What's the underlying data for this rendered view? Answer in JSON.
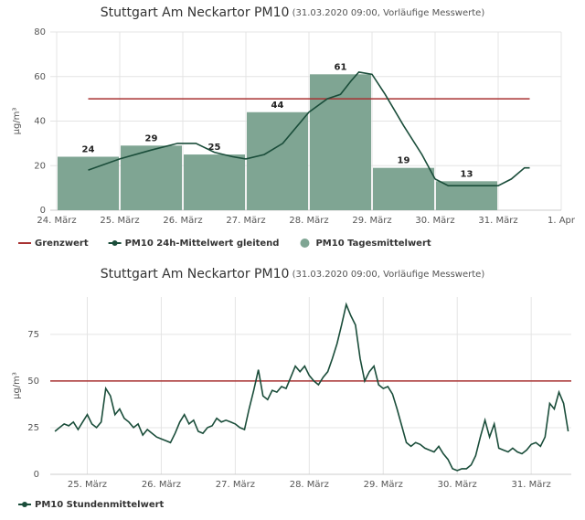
{
  "chart_data": [
    {
      "type": "bar",
      "title": "Stuttgart Am Neckartor PM10",
      "subtitle": "(31.03.2020 09:00, Vorläufige Messwerte)",
      "y_label": "µg/m³",
      "xlim": [
        0,
        192
      ],
      "xticks": [
        {
          "value": 0,
          "label": "24. März"
        },
        {
          "value": 24,
          "label": "25. März"
        },
        {
          "value": 48,
          "label": "26. März"
        },
        {
          "value": 72,
          "label": "27. März"
        },
        {
          "value": 96,
          "label": "28. März"
        },
        {
          "value": 120,
          "label": "29. März"
        },
        {
          "value": 144,
          "label": "30. März"
        },
        {
          "value": 168,
          "label": "31. März"
        },
        {
          "value": 192,
          "label": "1. Apr"
        }
      ],
      "ylim": [
        0,
        80
      ],
      "yticks": [
        0,
        20,
        40,
        60,
        80
      ],
      "grid": true,
      "series": [
        {
          "name": "Grenzwert",
          "type": "line",
          "color": "#a83232",
          "x": [
            12,
            180
          ],
          "values": [
            50,
            50
          ]
        },
        {
          "name": "PM10 24h-Mittelwert gleitend",
          "type": "line",
          "marker": true,
          "color": "#1a4d3a",
          "x": [
            12,
            24,
            36,
            46,
            53,
            60,
            67,
            72,
            79,
            86,
            96,
            103,
            108,
            112,
            115,
            120,
            125,
            132,
            139,
            144,
            149,
            156,
            163,
            168,
            173,
            178,
            180
          ],
          "values": [
            18,
            23,
            27,
            30,
            30,
            26,
            24,
            23,
            25,
            30,
            44,
            50,
            52,
            58,
            62,
            61,
            52,
            38,
            25,
            14,
            11,
            11,
            11,
            11,
            14,
            19,
            19
          ]
        },
        {
          "name": "PM10 Tagesmittelwert",
          "type": "bar",
          "color": "#7fa593",
          "bins": [
            0,
            24,
            48,
            72,
            96,
            120,
            144,
            168
          ],
          "values": [
            24,
            29,
            25,
            44,
            61,
            19,
            13
          ]
        }
      ]
    },
    {
      "type": "line",
      "title": "Stuttgart Am Neckartor PM10",
      "subtitle": "(31.03.2020 09:00, Vorläufige Messwerte)",
      "y_label": "µg/m³",
      "xlim": [
        12,
        181
      ],
      "xticks": [
        {
          "value": 24,
          "label": "25. März"
        },
        {
          "value": 48,
          "label": "26. März"
        },
        {
          "value": 72,
          "label": "27. März"
        },
        {
          "value": 96,
          "label": "28. März"
        },
        {
          "value": 120,
          "label": "29. März"
        },
        {
          "value": 144,
          "label": "30. März"
        },
        {
          "value": 168,
          "label": "31. März"
        }
      ],
      "ylim": [
        0,
        95
      ],
      "yticks": [
        0,
        25,
        50,
        75
      ],
      "grid": true,
      "hline": 50,
      "hline_color": "#a83232",
      "series": [
        {
          "name": "PM10 Stundenmittelwert",
          "type": "line",
          "marker": true,
          "color": "#1a4d3a",
          "x": [
            13.5,
            15,
            16.5,
            18,
            19.5,
            21,
            22.5,
            24,
            25.5,
            27,
            28.5,
            30,
            31.5,
            33,
            34.5,
            36,
            37.5,
            39,
            40.5,
            42,
            43.5,
            45,
            46.5,
            48,
            49.5,
            51,
            52.5,
            54,
            55.5,
            57,
            58.5,
            60,
            61.5,
            63,
            64.5,
            66,
            67.5,
            69,
            70.5,
            72,
            73.5,
            75,
            76.5,
            78,
            79.5,
            81,
            82.5,
            84,
            85.5,
            87,
            88.5,
            90,
            91.5,
            93,
            94.5,
            96,
            97.5,
            99,
            100.5,
            102,
            103.5,
            105,
            106.5,
            108,
            109.5,
            111,
            112.5,
            114,
            115.5,
            117,
            118.5,
            120,
            121.5,
            123,
            124.5,
            126,
            127.5,
            129,
            130.5,
            132,
            133.5,
            135,
            136.5,
            138,
            139.5,
            141,
            142.5,
            144,
            145.5,
            147,
            148.5,
            150,
            151.5,
            153,
            154.5,
            156,
            157.5,
            159,
            160.5,
            162,
            163.5,
            165,
            166.5,
            168,
            169.5,
            171,
            172.5,
            174,
            175.5,
            177,
            178.5,
            180
          ],
          "values": [
            23,
            25,
            27,
            26,
            28,
            24,
            28,
            32,
            27,
            25,
            28,
            46,
            42,
            32,
            35,
            30,
            28,
            25,
            27,
            21,
            24,
            22,
            20,
            19,
            18,
            17,
            22,
            28,
            32,
            27,
            29,
            23,
            22,
            25,
            26,
            30,
            28,
            29,
            28,
            27,
            25,
            24,
            35,
            45,
            56,
            42,
            40,
            45,
            44,
            47,
            46,
            52,
            58,
            55,
            58,
            53,
            50,
            48,
            52,
            55,
            62,
            70,
            80,
            91,
            85,
            80,
            62,
            50,
            55,
            58,
            48,
            46,
            47,
            43,
            35,
            26,
            17,
            15,
            17,
            16,
            14,
            13,
            12,
            15,
            11,
            8,
            3,
            2,
            3,
            3,
            5,
            10,
            20,
            29,
            20,
            27,
            14,
            13,
            12,
            14,
            12,
            11,
            13,
            16,
            17,
            15,
            20,
            38,
            35,
            44,
            38,
            23
          ]
        }
      ]
    }
  ]
}
